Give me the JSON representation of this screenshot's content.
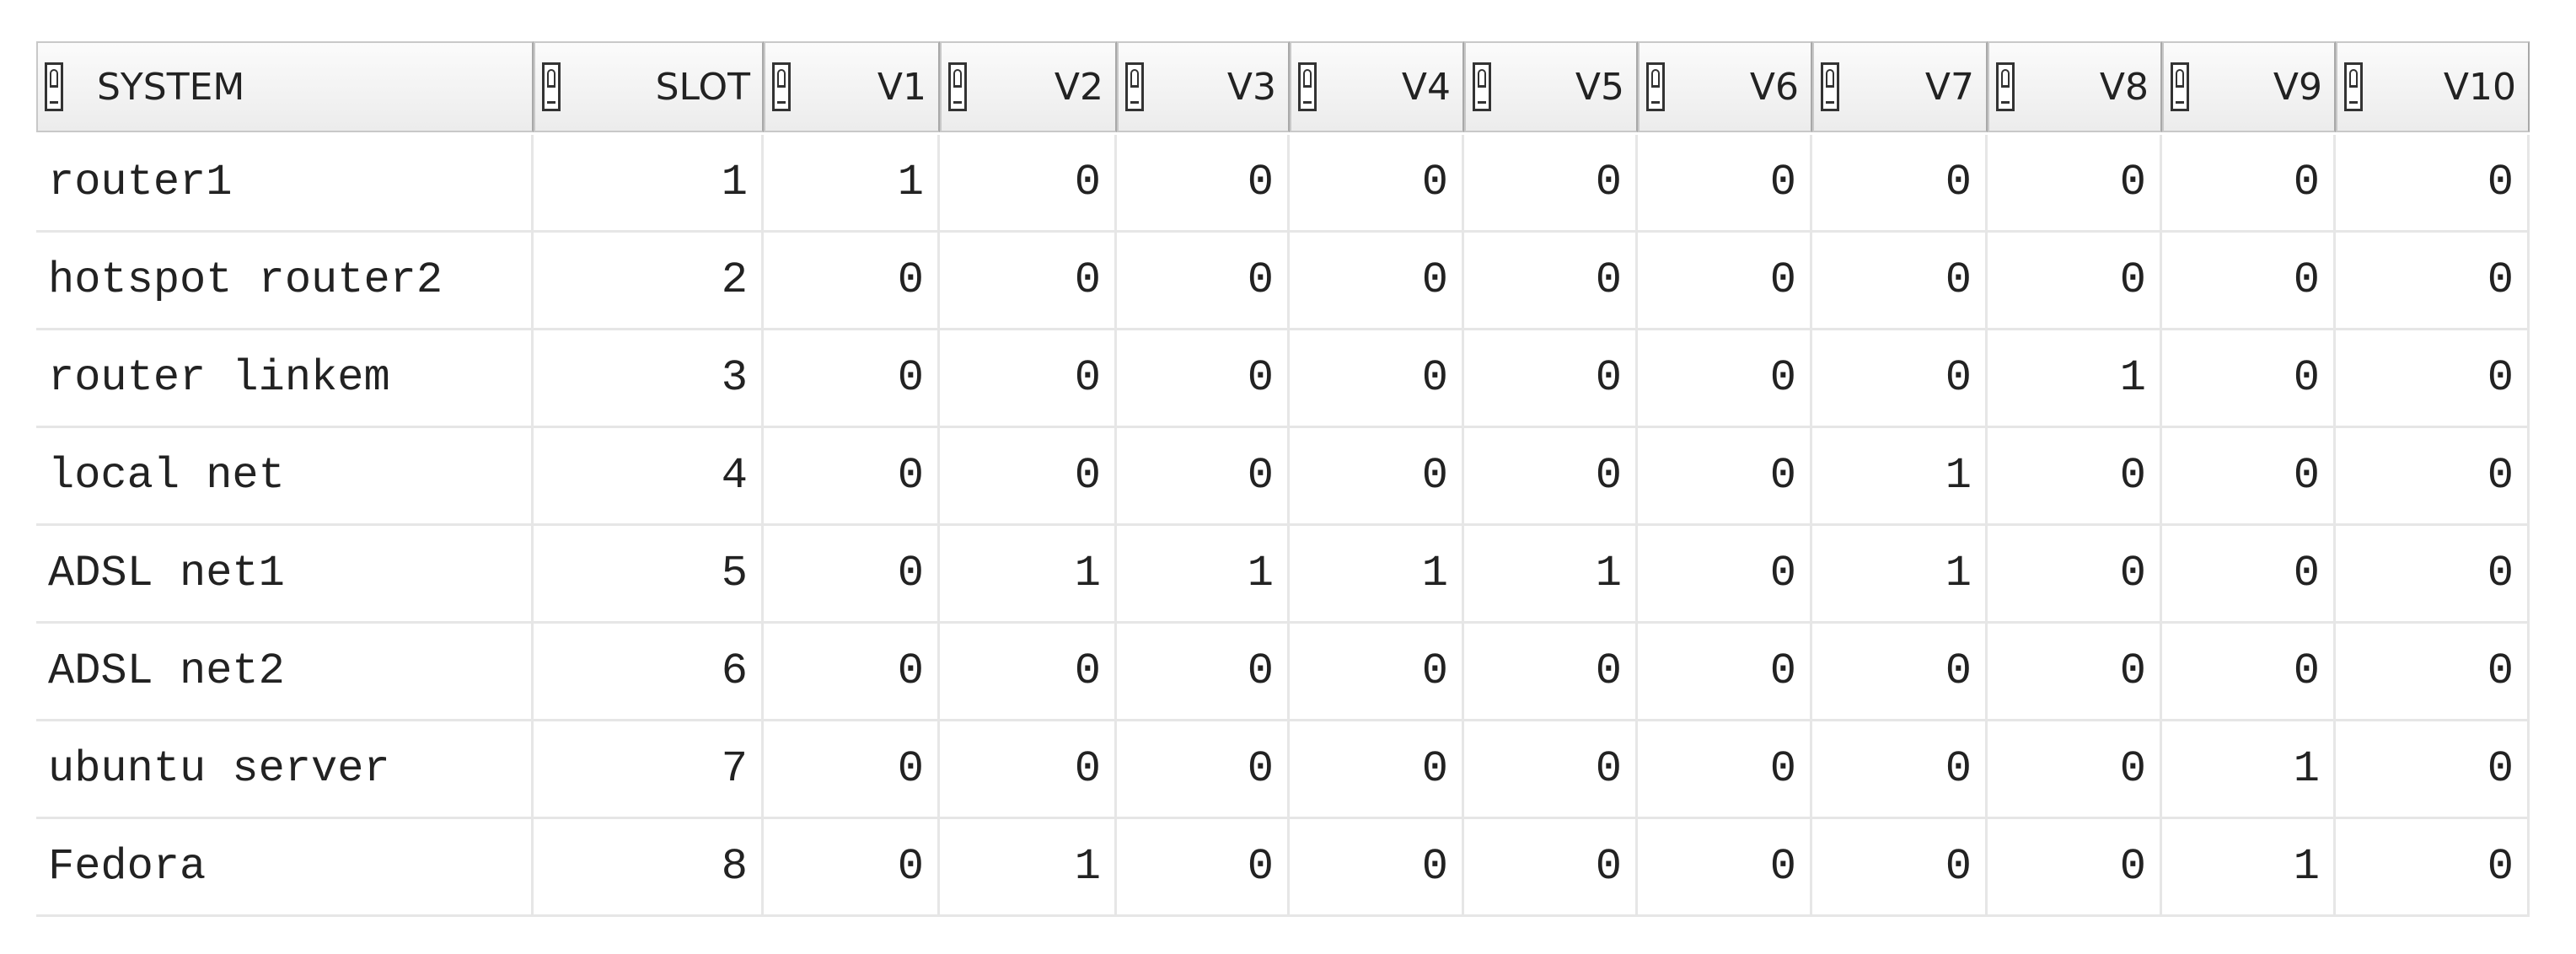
{
  "table": {
    "columns": [
      "SYSTEM",
      "SLOT",
      "V1",
      "V2",
      "V3",
      "V4",
      "V5",
      "V6",
      "V7",
      "V8",
      "V9",
      "V10"
    ],
    "rows": [
      [
        "router1",
        1,
        1,
        0,
        0,
        0,
        0,
        0,
        0,
        0,
        0,
        0
      ],
      [
        "hotspot router2",
        2,
        0,
        0,
        0,
        0,
        0,
        0,
        0,
        0,
        0,
        0
      ],
      [
        "router linkem",
        3,
        0,
        0,
        0,
        0,
        0,
        0,
        0,
        1,
        0,
        0
      ],
      [
        "local net",
        4,
        0,
        0,
        0,
        0,
        0,
        0,
        1,
        0,
        0,
        0
      ],
      [
        "ADSL net1",
        5,
        0,
        1,
        1,
        1,
        1,
        0,
        1,
        0,
        0,
        0
      ],
      [
        "ADSL net2",
        6,
        0,
        0,
        0,
        0,
        0,
        0,
        0,
        0,
        0,
        0
      ],
      [
        "ubuntu server",
        7,
        0,
        0,
        0,
        0,
        0,
        0,
        0,
        0,
        1,
        0
      ],
      [
        "Fedora",
        8,
        0,
        1,
        0,
        0,
        0,
        0,
        0,
        0,
        1,
        0
      ]
    ]
  }
}
